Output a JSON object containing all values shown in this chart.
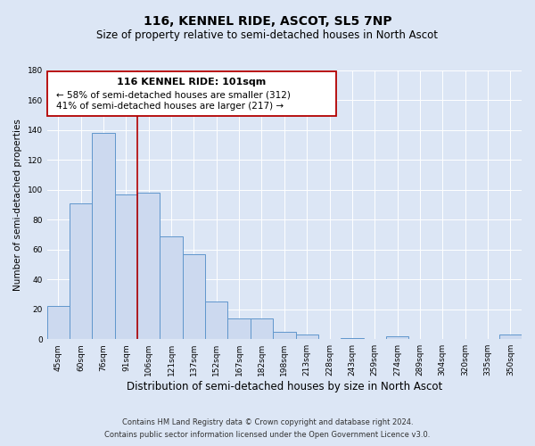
{
  "title": "116, KENNEL RIDE, ASCOT, SL5 7NP",
  "subtitle": "Size of property relative to semi-detached houses in North Ascot",
  "xlabel": "Distribution of semi-detached houses by size in North Ascot",
  "ylabel": "Number of semi-detached properties",
  "categories": [
    "45sqm",
    "60sqm",
    "76sqm",
    "91sqm",
    "106sqm",
    "121sqm",
    "137sqm",
    "152sqm",
    "167sqm",
    "182sqm",
    "198sqm",
    "213sqm",
    "228sqm",
    "243sqm",
    "259sqm",
    "274sqm",
    "289sqm",
    "304sqm",
    "320sqm",
    "335sqm",
    "350sqm"
  ],
  "values": [
    22,
    91,
    138,
    97,
    98,
    69,
    57,
    25,
    14,
    14,
    5,
    3,
    0,
    1,
    0,
    2,
    0,
    0,
    0,
    0,
    3
  ],
  "bar_color": "#ccd9ef",
  "bar_edge_color": "#6096cc",
  "vline_x": 4.0,
  "vline_color": "#b30000",
  "ylim": [
    0,
    180
  ],
  "yticks": [
    0,
    20,
    40,
    60,
    80,
    100,
    120,
    140,
    160,
    180
  ],
  "annotation_box_title": "116 KENNEL RIDE: 101sqm",
  "annotation_line1": "← 58% of semi-detached houses are smaller (312)",
  "annotation_line2": "41% of semi-detached houses are larger (217) →",
  "annotation_box_edge_color": "#b30000",
  "footnote1": "Contains HM Land Registry data © Crown copyright and database right 2024.",
  "footnote2": "Contains public sector information licensed under the Open Government Licence v3.0.",
  "background_color": "#dce6f5",
  "plot_bg_color": "#dce6f5",
  "grid_color": "#ffffff",
  "title_fontsize": 10,
  "subtitle_fontsize": 8.5,
  "xlabel_fontsize": 8.5,
  "ylabel_fontsize": 7.5,
  "tick_fontsize": 6.5,
  "annotation_title_fontsize": 8,
  "annotation_text_fontsize": 7.5,
  "footnote_fontsize": 6
}
